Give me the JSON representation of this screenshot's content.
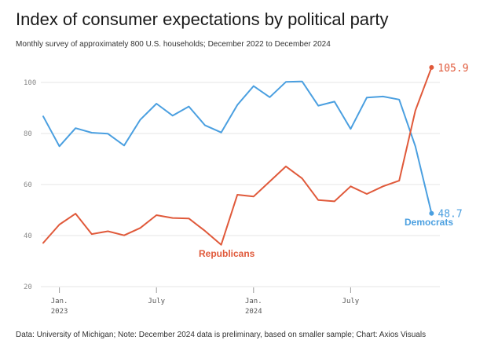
{
  "header": {
    "title": "Index of consumer expectations by political party",
    "subtitle": "Monthly survey of approximately 800 U.S. households; December 2022 to December 2024"
  },
  "footer": {
    "note": "Data: University of Michigan; Note: December 2024 data is preliminary, based on smaller sample; Chart: Axios Visuals"
  },
  "chart_data": {
    "type": "line",
    "title": "Index of consumer expectations by political party",
    "subtitle": "Monthly survey of approximately 800 U.S. households; December 2022 to December 2024",
    "x": [
      "2022-12",
      "2023-01",
      "2023-02",
      "2023-03",
      "2023-04",
      "2023-05",
      "2023-06",
      "2023-07",
      "2023-08",
      "2023-09",
      "2023-10",
      "2023-11",
      "2023-12",
      "2024-01",
      "2024-02",
      "2024-03",
      "2024-04",
      "2024-05",
      "2024-06",
      "2024-07",
      "2024-08",
      "2024-09",
      "2024-10",
      "2024-11",
      "2024-12"
    ],
    "xticks": [
      {
        "x": "2023-01",
        "line1": "Jan.",
        "line2": "2023"
      },
      {
        "x": "2023-07",
        "line1": "July",
        "line2": ""
      },
      {
        "x": "2024-01",
        "line1": "Jan.",
        "line2": "2024"
      },
      {
        "x": "2024-07",
        "line1": "July",
        "line2": ""
      }
    ],
    "yticks": [
      20,
      40,
      60,
      80,
      100
    ],
    "ylim": [
      20,
      108
    ],
    "grid": true,
    "series": [
      {
        "name": "Democrats",
        "color": "#4a9fe0",
        "end_label": "48.7",
        "values": [
          86.7,
          75.0,
          82.1,
          80.3,
          79.9,
          75.3,
          85.4,
          91.7,
          87.0,
          90.6,
          83.2,
          80.4,
          91.2,
          98.6,
          94.2,
          100.2,
          100.4,
          90.9,
          92.5,
          81.8,
          94.1,
          94.5,
          93.3,
          75.0,
          48.7
        ]
      },
      {
        "name": "Republicans",
        "color": "#e0593a",
        "end_label": "105.9",
        "values": [
          37.1,
          44.3,
          48.6,
          40.6,
          41.7,
          40.1,
          43.0,
          48.0,
          46.9,
          46.7,
          41.8,
          36.4,
          56.0,
          55.3,
          61.2,
          67.1,
          62.4,
          53.9,
          53.4,
          59.3,
          56.3,
          59.3,
          61.5,
          89.0,
          105.9
        ]
      }
    ]
  }
}
